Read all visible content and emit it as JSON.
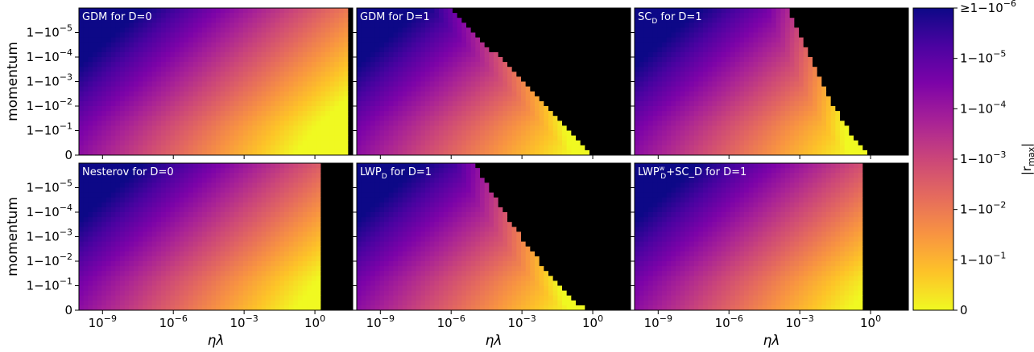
{
  "chart_data": {
    "type": "heatmap",
    "colormap": "plasma_r",
    "diverged_color": "#000000",
    "xlabel": "ηλ",
    "ylabel": "momentum",
    "x_scale": "log",
    "x_ticks": [
      {
        "value": 1e-09,
        "base": "10",
        "exp": "−9"
      },
      {
        "value": 1e-06,
        "base": "10",
        "exp": "−6"
      },
      {
        "value": 0.001,
        "base": "10",
        "exp": "−3"
      },
      {
        "value": 1,
        "base": "10",
        "exp": "0"
      }
    ],
    "x_range": [
      1e-10,
      40
    ],
    "y_scale": "one-minus-log",
    "y_ticks": [
      {
        "value": 0,
        "text": "0",
        "exp": ""
      },
      {
        "value": 0.9,
        "text": "1−10",
        "exp": "−1"
      },
      {
        "value": 0.99,
        "text": "1−10",
        "exp": "−2"
      },
      {
        "value": 0.999,
        "text": "1−10",
        "exp": "−3"
      },
      {
        "value": 0.9999,
        "text": "1−10",
        "exp": "−4"
      },
      {
        "value": 0.99999,
        "text": "1−10",
        "exp": "−5"
      }
    ],
    "colorbar": {
      "label": "|r_max|",
      "label_main": "|r",
      "label_sub": "max",
      "label_tail": "|",
      "ticks": [
        {
          "text": "≥1−10",
          "exp": "−6"
        },
        {
          "text": "1−10",
          "exp": "−5"
        },
        {
          "text": "1−10",
          "exp": "−4"
        },
        {
          "text": "1−10",
          "exp": "−3"
        },
        {
          "text": "1−10",
          "exp": "−2"
        },
        {
          "text": "1−10",
          "exp": "−1"
        },
        {
          "text": "0",
          "exp": ""
        }
      ]
    },
    "panels": [
      {
        "name": "gdm-d0",
        "title": "GDM for D=0",
        "title_html": [
          "GDM for D=0"
        ],
        "mode": "plain",
        "boundary_top": 24,
        "boundary_bottom": 25
      },
      {
        "name": "gdm-d1",
        "title": "GDM for D=1",
        "mode": "diag",
        "boundary_top": 1e-06,
        "boundary_bottom": 1
      },
      {
        "name": "sc-d1",
        "title": "SC_D for D=1",
        "mode": "curve",
        "boundary_top": 0.0003,
        "boundary_bottom": 1
      },
      {
        "name": "nesterov-d0",
        "title": "Nesterov for D=0",
        "mode": "plain",
        "boundary_top": 2,
        "boundary_bottom": 2.2
      },
      {
        "name": "lwp-d1",
        "title": "LWP_D for D=1",
        "mode": "curve",
        "boundary_top": 1e-05,
        "boundary_bottom": 0.7
      },
      {
        "name": "lwpsc-d1",
        "title": "LWP_D^w+SC_D for D=1",
        "mode": "plain",
        "boundary_top": 0.5,
        "boundary_bottom": 0.5
      }
    ]
  }
}
